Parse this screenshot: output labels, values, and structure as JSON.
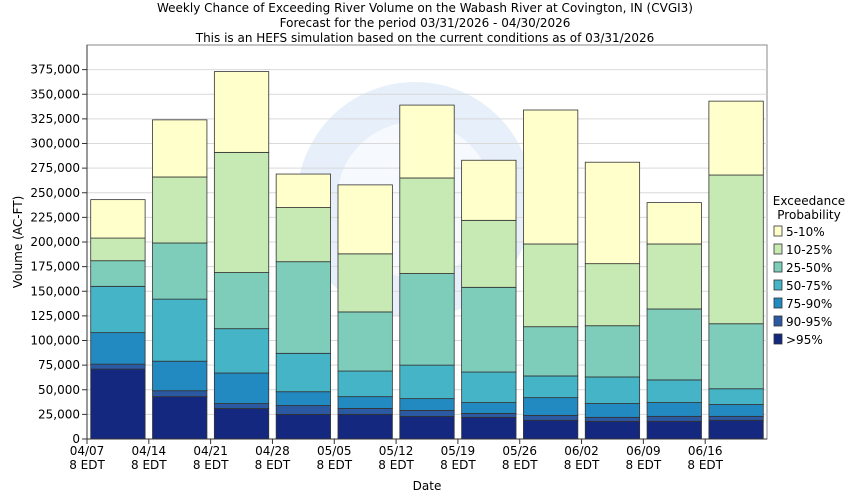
{
  "chart_data": {
    "type": "bar",
    "title": [
      "Weekly Chance of Exceeding River Volume on the Wabash River at Covington, IN (CVGI3)",
      "Forecast for the period 03/31/2026 - 04/30/2026",
      "This is an HEFS simulation based on the current conditions as of 03/31/2026"
    ],
    "xlabel": "Date",
    "ylabel": "Volume (AC-FT)",
    "ylim": [
      0,
      400000
    ],
    "yticks": [
      0,
      25000,
      50000,
      75000,
      100000,
      125000,
      150000,
      175000,
      200000,
      225000,
      250000,
      275000,
      300000,
      325000,
      350000,
      375000
    ],
    "ytick_labels": [
      "0",
      "25,000",
      "50,000",
      "75,000",
      "100,000",
      "125,000",
      "150,000",
      "175,000",
      "200,000",
      "225,000",
      "250,000",
      "275,000",
      "300,000",
      "325,000",
      "350,000",
      "375,000"
    ],
    "xtick_labels": [
      [
        "04/07",
        "8 EDT"
      ],
      [
        "04/14",
        "8 EDT"
      ],
      [
        "04/21",
        "8 EDT"
      ],
      [
        "04/28",
        "8 EDT"
      ],
      [
        "05/05",
        "8 EDT"
      ],
      [
        "05/12",
        "8 EDT"
      ],
      [
        "05/19",
        "8 EDT"
      ],
      [
        "05/26",
        "8 EDT"
      ],
      [
        "06/02",
        "8 EDT"
      ],
      [
        "06/09",
        "8 EDT"
      ],
      [
        "06/16",
        "8 EDT"
      ]
    ],
    "bar_count": 11,
    "legend": {
      "title": [
        "Exceedance",
        "Probability"
      ],
      "placement": "right"
    },
    "series": [
      {
        "name": ">95%",
        "color": "#14287f",
        "values": [
          71000,
          43000,
          31000,
          25000,
          25000,
          23000,
          22000,
          19000,
          18000,
          18000,
          19000
        ]
      },
      {
        "name": "90-95%",
        "color": "#2b5aa3",
        "values": [
          76000,
          49000,
          36000,
          34000,
          31000,
          29000,
          26000,
          24000,
          22000,
          23000,
          23000
        ]
      },
      {
        "name": "75-90%",
        "color": "#2289c1",
        "values": [
          108000,
          79000,
          67000,
          48000,
          43000,
          41000,
          37000,
          42000,
          36000,
          37000,
          35000
        ]
      },
      {
        "name": "50-75%",
        "color": "#45b4c6",
        "values": [
          155000,
          142000,
          112000,
          87000,
          69000,
          75000,
          68000,
          64000,
          63000,
          60000,
          51000
        ]
      },
      {
        "name": "25-50%",
        "color": "#7ecdbb",
        "values": [
          181000,
          199000,
          169000,
          180000,
          129000,
          168000,
          154000,
          114000,
          115000,
          132000,
          117000
        ]
      },
      {
        "name": "10-25%",
        "color": "#c7e9b4",
        "values": [
          204000,
          266000,
          291000,
          235000,
          188000,
          265000,
          222000,
          198000,
          178000,
          198000,
          268000
        ]
      },
      {
        "name": "5-10%",
        "color": "#ffffcc",
        "values": [
          243000,
          324000,
          373000,
          269000,
          258000,
          339000,
          283000,
          334000,
          281000,
          240000,
          343000
        ]
      }
    ]
  }
}
